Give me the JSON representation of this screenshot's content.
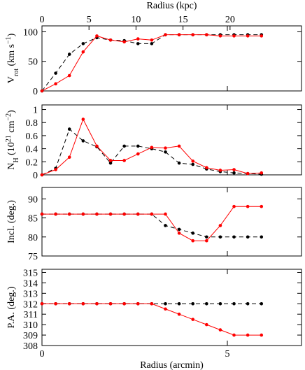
{
  "chart_data": [
    {
      "type": "line",
      "x2label": "Radius (kpc)",
      "x2lim": [
        0,
        27.6
      ],
      "x2ticks": [
        0,
        5,
        10,
        15,
        20
      ],
      "ylabel": [
        {
          "text": "V"
        },
        {
          "text": "rot",
          "sub": true
        },
        {
          "text": " (km s"
        },
        {
          "text": "−1",
          "sup": true
        },
        {
          "text": ")"
        }
      ],
      "xlim": [
        0,
        7
      ],
      "xticks": [
        0,
        5
      ],
      "ylim": [
        0,
        110
      ],
      "yticks": [
        0,
        50,
        100
      ],
      "x": [
        0,
        0.37,
        0.74,
        1.11,
        1.48,
        1.85,
        2.22,
        2.59,
        2.96,
        3.33,
        3.7,
        4.07,
        4.44,
        4.81,
        5.18,
        5.55,
        5.92
      ],
      "series": [
        {
          "color": "#000000",
          "dash": true,
          "values": [
            0,
            30,
            62,
            80,
            90,
            86,
            85,
            80,
            80,
            95,
            95,
            95,
            95,
            95,
            95,
            95,
            95
          ]
        },
        {
          "color": "#ff0000",
          "dash": false,
          "values": [
            0,
            12,
            26,
            66,
            93,
            86,
            83,
            88,
            86,
            95,
            95,
            95,
            95,
            93,
            93,
            93,
            93
          ]
        }
      ]
    },
    {
      "type": "line",
      "ylabel": [
        {
          "text": "N"
        },
        {
          "text": "H",
          "sub": true
        },
        {
          "text": " (10"
        },
        {
          "text": "21",
          "sup": true
        },
        {
          "text": " cm"
        },
        {
          "text": "−2",
          "sup": true
        },
        {
          "text": ")"
        }
      ],
      "xlim": [
        0,
        7
      ],
      "xticks": [
        0,
        5
      ],
      "ylim": [
        0,
        1.07
      ],
      "yticks": [
        0,
        0.2,
        0.4,
        0.6,
        0.8,
        1
      ],
      "x": [
        0,
        0.37,
        0.74,
        1.11,
        1.48,
        1.85,
        2.22,
        2.59,
        2.96,
        3.33,
        3.7,
        4.07,
        4.44,
        4.81,
        5.18,
        5.55,
        5.92
      ],
      "series": [
        {
          "color": "#000000",
          "dash": true,
          "values": [
            0,
            0.1,
            0.7,
            0.52,
            0.43,
            0.18,
            0.44,
            0.44,
            0.4,
            0.35,
            0.18,
            0.16,
            0.09,
            0.05,
            0.03,
            0.02,
            0.01
          ]
        },
        {
          "color": "#ff0000",
          "dash": false,
          "values": [
            0,
            0.08,
            0.27,
            0.85,
            0.44,
            0.22,
            0.22,
            0.32,
            0.42,
            0.41,
            0.44,
            0.21,
            0.11,
            0.07,
            0.08,
            0.02,
            0.03
          ]
        }
      ]
    },
    {
      "type": "line",
      "ylabel": [
        {
          "text": "Incl. (deg.)"
        }
      ],
      "xlim": [
        0,
        7
      ],
      "xticks": [
        0,
        5
      ],
      "ylim": [
        75,
        93
      ],
      "yticks": [
        75,
        80,
        85,
        90
      ],
      "x": [
        0,
        0.37,
        0.74,
        1.11,
        1.48,
        1.85,
        2.22,
        2.59,
        2.96,
        3.33,
        3.7,
        4.07,
        4.44,
        4.81,
        5.18,
        5.55,
        5.92
      ],
      "series": [
        {
          "color": "#000000",
          "dash": true,
          "values": [
            86,
            86,
            86,
            86,
            86,
            86,
            86,
            86,
            86,
            83,
            82,
            81,
            80,
            80,
            80,
            80,
            80
          ]
        },
        {
          "color": "#ff0000",
          "dash": false,
          "values": [
            86,
            86,
            86,
            86,
            86,
            86,
            86,
            86,
            86,
            86,
            81,
            79,
            79,
            83,
            88,
            88,
            88
          ]
        }
      ]
    },
    {
      "type": "line",
      "ylabel": [
        {
          "text": "P.A. (deg.)"
        }
      ],
      "xlabel": "Radius (arcmin)",
      "xlim": [
        0,
        7
      ],
      "xticks": [
        0,
        5
      ],
      "ylim": [
        308,
        315.3
      ],
      "yticks": [
        308,
        309,
        310,
        311,
        312,
        313,
        314,
        315
      ],
      "x": [
        0,
        0.37,
        0.74,
        1.11,
        1.48,
        1.85,
        2.22,
        2.59,
        2.96,
        3.33,
        3.7,
        4.07,
        4.44,
        4.81,
        5.18,
        5.55,
        5.92
      ],
      "series": [
        {
          "color": "#000000",
          "dash": true,
          "values": [
            312,
            312,
            312,
            312,
            312,
            312,
            312,
            312,
            312,
            312,
            312,
            312,
            312,
            312,
            312,
            312,
            312
          ]
        },
        {
          "color": "#ff0000",
          "dash": false,
          "values": [
            312,
            312,
            312,
            312,
            312,
            312,
            312,
            312,
            312,
            311.5,
            311,
            310.5,
            310,
            309.5,
            309,
            309,
            309
          ]
        }
      ]
    }
  ]
}
